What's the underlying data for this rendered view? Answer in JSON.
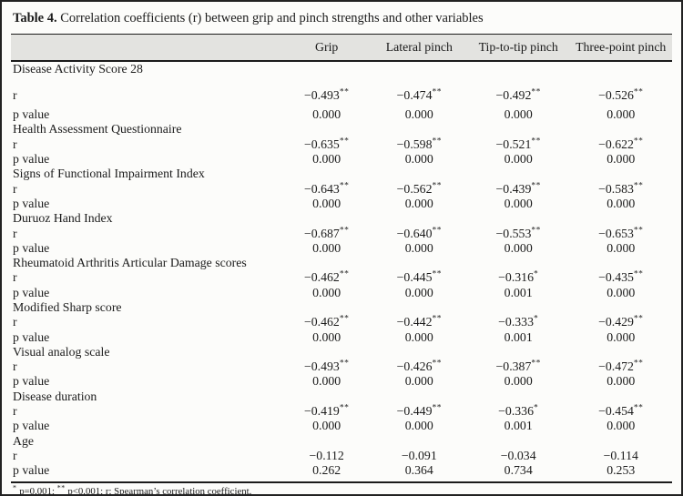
{
  "table": {
    "label": "Table 4.",
    "title": " Correlation coefficients (r) between grip and pinch strengths and other variables",
    "columns": [
      "Grip",
      "Lateral pinch",
      "Tip-to-tip pinch",
      "Three-point pinch"
    ],
    "row_labels": {
      "r": "r",
      "p": "p value"
    },
    "sections": [
      {
        "name": "Disease Activity Score 28",
        "r": [
          "−0.493**",
          "−0.474**",
          "−0.492**",
          "−0.526**"
        ],
        "p": [
          "0.000",
          "0.000",
          "0.000",
          "0.000"
        ]
      },
      {
        "name": "Health Assessment Questionnaire",
        "r": [
          "−0.635**",
          "−0.598**",
          "−0.521**",
          "−0.622**"
        ],
        "p": [
          "0.000",
          "0.000",
          "0.000",
          "0.000"
        ]
      },
      {
        "name": "Signs of Functional Impairment Index",
        "r": [
          "−0.643**",
          "−0.562**",
          "−0.439**",
          "−0.583**"
        ],
        "p": [
          "0.000",
          "0.000",
          "0.000",
          "0.000"
        ]
      },
      {
        "name": "Duruoz Hand Index",
        "r": [
          "−0.687**",
          "−0.640**",
          "−0.553**",
          "−0.653**"
        ],
        "p": [
          "0.000",
          "0.000",
          "0.000",
          "0.000"
        ]
      },
      {
        "name": "Rheumatoid Arthritis Articular Damage scores",
        "r": [
          "−0.462**",
          "−0.445**",
          "−0.316*",
          "−0.435**"
        ],
        "p": [
          "0.000",
          "0.000",
          "0.001",
          "0.000"
        ]
      },
      {
        "name": "Modified Sharp score",
        "r": [
          "−0.462**",
          "−0.442**",
          "−0.333*",
          "−0.429**"
        ],
        "p": [
          "0.000",
          "0.000",
          "0.001",
          "0.000"
        ]
      },
      {
        "name": "Visual analog scale",
        "r": [
          "−0.493**",
          "−0.426**",
          "−0.387**",
          "−0.472**"
        ],
        "p": [
          "0.000",
          "0.000",
          "0.000",
          "0.000"
        ]
      },
      {
        "name": "Disease duration",
        "r": [
          "−0.419**",
          "−0.449**",
          "−0.336*",
          "−0.454**"
        ],
        "p": [
          "0.000",
          "0.000",
          "0.001",
          "0.000"
        ]
      },
      {
        "name": "Age",
        "r": [
          "−0.112",
          "−0.091",
          "−0.034",
          "−0.114"
        ],
        "p": [
          "0.262",
          "0.364",
          "0.734",
          "0.253"
        ]
      }
    ],
    "footnote_parts": [
      {
        "sup": "*"
      },
      {
        "text": " p=0.001; "
      },
      {
        "sup": "**"
      },
      {
        "text": " p<0.001; r: Spearman’s correlation coefficient."
      }
    ]
  },
  "colors": {
    "header_band": "#e3e3e0",
    "frame": "#222222",
    "text": "#1b1b1b",
    "background": "#fcfcfa"
  }
}
